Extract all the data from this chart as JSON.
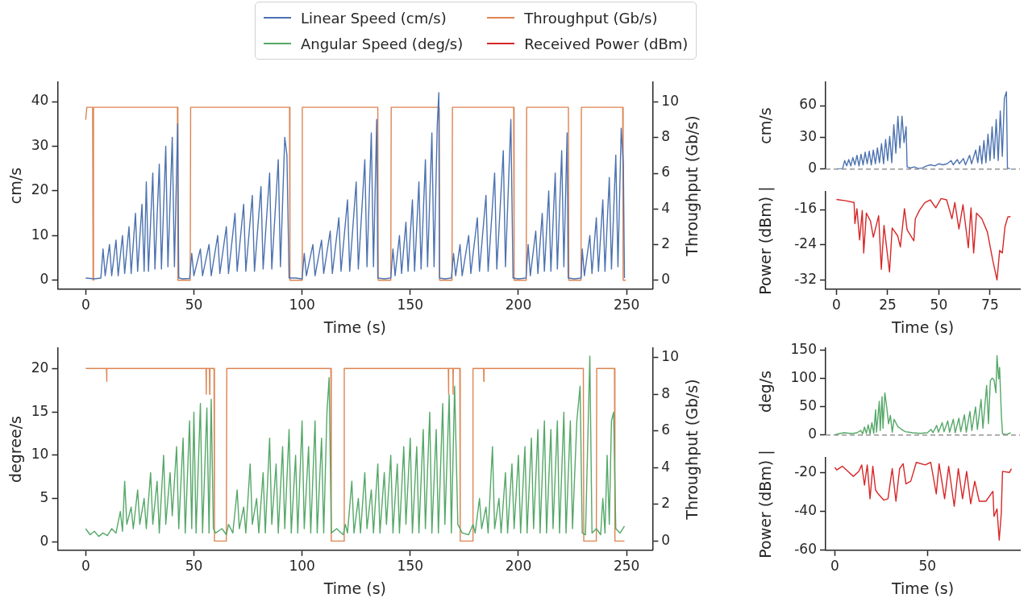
{
  "chart_data": [
    {
      "type": "line",
      "xlabel": "Time (s)",
      "ylabel": "cm/s",
      "y2label": "Throughput (Gb/s)",
      "legend": "top",
      "xlim": [
        -13,
        262
      ],
      "xticks": [
        0,
        50,
        100,
        150,
        200,
        250
      ],
      "ylim": [
        -2,
        44.3
      ],
      "yticks": [
        0,
        10,
        20,
        30,
        40
      ],
      "y2lim": [
        -0.5,
        11.1
      ],
      "y2ticks": [
        0,
        2,
        4,
        6,
        8,
        10
      ],
      "series": [
        {
          "name": "Linear Speed (cm/s)",
          "color": "#4c72b0",
          "x": [
            0,
            4,
            7,
            8,
            9,
            11,
            12,
            14,
            15,
            17,
            18,
            20,
            21,
            23,
            24,
            26,
            27,
            28,
            29,
            31,
            32,
            34,
            35,
            37,
            38,
            40,
            41,
            42.5,
            43,
            45,
            48,
            49,
            50,
            53,
            54,
            57,
            58,
            61,
            62,
            65,
            66,
            69,
            70,
            73,
            74,
            77,
            78,
            81,
            82,
            85,
            86,
            89,
            90,
            92,
            93,
            94,
            97,
            100,
            101,
            102,
            105,
            106,
            109,
            110,
            113,
            114,
            117,
            118,
            121,
            122,
            125,
            126,
            129,
            130,
            132,
            133,
            134.5,
            135,
            138,
            141,
            142,
            143,
            145,
            146,
            148,
            149,
            151,
            152,
            154,
            155,
            157,
            158,
            160,
            161,
            162.5,
            163.2,
            163.5,
            166,
            169,
            170,
            171,
            173,
            174,
            177,
            178,
            181,
            182,
            185,
            186,
            189,
            190,
            193,
            194,
            196.5,
            197.5,
            200,
            203.5,
            204.5,
            205.5,
            208,
            209,
            211,
            212,
            214,
            215,
            217,
            218,
            220,
            221,
            222.5,
            223,
            226,
            229,
            229.5,
            230.5,
            233,
            234,
            236,
            237,
            239,
            240,
            242,
            243,
            245,
            246,
            247.5,
            248.5,
            249
          ],
          "values": [
            0.5,
            0.3,
            0.5,
            7,
            1,
            8,
            1,
            9,
            1,
            10,
            1.5,
            12,
            1.5,
            15,
            2,
            17,
            2,
            22,
            2,
            24,
            2.5,
            26,
            2.5,
            30,
            3,
            32,
            3,
            35,
            0.5,
            0.3,
            0.4,
            6,
            1,
            7,
            1,
            8,
            1,
            10,
            1.5,
            12,
            1.5,
            15,
            2,
            17,
            2,
            19,
            2,
            21,
            2.5,
            24,
            2.5,
            27,
            3,
            32,
            28,
            0.5,
            0.5,
            0.3,
            6,
            1,
            8,
            1,
            9,
            1.5,
            11,
            1.5,
            14,
            2,
            18,
            2,
            22,
            2.5,
            27,
            3,
            33,
            3,
            36,
            0.5,
            0.3,
            0.5,
            7,
            1,
            10,
            1.5,
            13,
            2,
            18,
            2,
            22,
            2.5,
            27,
            3,
            33,
            3,
            35,
            42,
            0.5,
            0.3,
            0.5,
            6,
            1,
            8,
            1,
            10,
            1.5,
            14,
            2,
            19,
            2,
            24,
            2.5,
            29,
            3,
            36,
            0.5,
            0.3,
            0.5,
            8,
            1,
            11,
            1.5,
            15,
            2,
            20,
            2,
            24,
            2.5,
            29,
            3,
            33,
            0.5,
            0.3,
            0.5,
            7,
            1,
            10,
            1.5,
            14,
            2,
            18,
            2,
            23,
            2.5,
            28,
            3,
            34,
            26,
            0.5
          ]
        },
        {
          "name": "Throughput (Gb/s)",
          "color": "#dd8452",
          "axis": "y2",
          "x": [
            0,
            0.5,
            3.2,
            3.4,
            3.6,
            42.4,
            42.6,
            48.3,
            48.5,
            94.2,
            94.4,
            99.9,
            100.1,
            135,
            135.2,
            141,
            141.2,
            163.4,
            163.6,
            169.3,
            169.5,
            197.8,
            198,
            203.6,
            203.8,
            223.1,
            223.3,
            228.9,
            229.1,
            248.2,
            248.4,
            249.6
          ],
          "values": [
            9,
            9.7,
            9.7,
            0,
            9.7,
            9.7,
            0,
            0,
            9.7,
            9.7,
            0,
            0,
            9.7,
            9.7,
            0,
            0,
            9.7,
            9.7,
            0,
            0,
            9.7,
            9.7,
            0,
            0,
            9.7,
            9.7,
            0,
            0,
            9.7,
            9.7,
            0,
            0
          ]
        }
      ]
    },
    {
      "type": "line",
      "ylabel": "cm/s",
      "tick_labels": "y",
      "xlim": [
        -5.3,
        89.6
      ],
      "ylim": [
        0,
        82
      ],
      "yticks": [
        0,
        30,
        60
      ],
      "ref_lines": [
        {
          "axis": "y",
          "value": 0,
          "color": "#808080",
          "line_style": "dashed"
        }
      ],
      "series": [
        {
          "color": "#4c72b0",
          "x": [
            0,
            3,
            4,
            5,
            6,
            7,
            8,
            9,
            10,
            11,
            12,
            13,
            14,
            15,
            16,
            17,
            18,
            19,
            20,
            21,
            22,
            23,
            24,
            25,
            26,
            27,
            28,
            29,
            30,
            31,
            32,
            33,
            34,
            34.5,
            36,
            38,
            40,
            42,
            44,
            46,
            48,
            50,
            52,
            54,
            56,
            57,
            59,
            60,
            62,
            63,
            65,
            66,
            68,
            69,
            70,
            71,
            72,
            73,
            74,
            75,
            76,
            77,
            78,
            79,
            80,
            81,
            82,
            83,
            83.5,
            85
          ],
          "values": [
            0,
            0.5,
            8,
            3,
            9,
            3,
            11,
            4,
            13,
            3,
            14,
            4,
            16,
            5,
            17,
            4,
            18,
            5,
            20,
            6,
            24,
            5,
            28,
            8,
            31,
            6,
            42,
            15,
            50,
            20,
            50,
            25,
            40,
            2,
            1,
            2,
            0.5,
            1,
            3,
            4,
            3,
            5,
            4,
            5,
            8,
            4,
            9,
            5,
            10,
            4,
            13,
            5,
            18,
            6,
            22,
            5,
            27,
            6,
            33,
            8,
            40,
            10,
            47,
            8,
            55,
            12,
            67,
            73,
            1,
            0
          ]
        }
      ]
    },
    {
      "type": "line",
      "xlabel": "Time (s)",
      "ylabel": "Power (dBm) |",
      "xlim": [
        -5.3,
        89.6
      ],
      "xticks": [
        0,
        25,
        50,
        75
      ],
      "ylim": [
        -34.1,
        -12
      ],
      "yticks": [
        -32,
        -24,
        -16
      ],
      "series": [
        {
          "color": "#d62728",
          "x": [
            0,
            4.6,
            8.6,
            9,
            10,
            11.3,
            12.6,
            13.3,
            14.6,
            16.6,
            18,
            20.6,
            21.9,
            23.2,
            25.9,
            27.2,
            29.9,
            31.2,
            33.2,
            34.5,
            37.8,
            38.5,
            40.5,
            43.2,
            45.8,
            48.5,
            51.1,
            53.8,
            56.4,
            57.8,
            59.8,
            61.8,
            64.4,
            65.7,
            67,
            68.4,
            71,
            73.7,
            76.4,
            78.4,
            79.7,
            81,
            82.3,
            83.7,
            85
          ],
          "values": [
            -13.7,
            -14,
            -14.4,
            -19.2,
            -15.8,
            -22.9,
            -16.2,
            -25.9,
            -16.8,
            -18.6,
            -22.3,
            -17.4,
            -29.6,
            -19.6,
            -30.2,
            -20.2,
            -22,
            -24.5,
            -15.8,
            -20.6,
            -23.1,
            -18.1,
            -16.2,
            -14.4,
            -13.8,
            -15.6,
            -13.5,
            -13.8,
            -18.1,
            -14.4,
            -20.4,
            -14.9,
            -24.7,
            -15.6,
            -25.9,
            -16.8,
            -18.1,
            -21.1,
            -27.7,
            -32,
            -25.3,
            -25.9,
            -19.9,
            -17.7,
            -17.6
          ]
        }
      ]
    },
    {
      "type": "line",
      "xlabel": "Time (s)",
      "ylabel": "degree/s",
      "y2label": "Throughput (Gb/s)",
      "xlim": [
        -13,
        262
      ],
      "xticks": [
        0,
        50,
        100,
        150,
        200,
        250
      ],
      "ylim": [
        -1,
        22.4
      ],
      "yticks": [
        0,
        5,
        10,
        15,
        20
      ],
      "y2lim": [
        -0.5,
        10.5
      ],
      "y2ticks": [
        0,
        2,
        4,
        6,
        8,
        10
      ],
      "series": [
        {
          "name": "Angular Speed (deg/s)",
          "color": "#55a868",
          "x": [
            0,
            2,
            4,
            6,
            8,
            10,
            12,
            14,
            16,
            17,
            18,
            19,
            21,
            22,
            24,
            25,
            27,
            28,
            30,
            31,
            33,
            34,
            36,
            37,
            39,
            40,
            42,
            43,
            45,
            46,
            48,
            49,
            50,
            51,
            53,
            54,
            56,
            57,
            58,
            59,
            60,
            63,
            65,
            66,
            68,
            70,
            71,
            73,
            74,
            76,
            77,
            79,
            80,
            82,
            83,
            85,
            86,
            88,
            89,
            91,
            92,
            94,
            95,
            97,
            98,
            100,
            101,
            103,
            104,
            106,
            107,
            109,
            110,
            111.5,
            112.5,
            113.5,
            116,
            119,
            120,
            121,
            123,
            124,
            126,
            127,
            129,
            130,
            132,
            133,
            135,
            136,
            138,
            139,
            141,
            142,
            144,
            145,
            147,
            148,
            150,
            151,
            153,
            154,
            156,
            157,
            159,
            160,
            162,
            163,
            165,
            166,
            168,
            169,
            170.5,
            172,
            174,
            177,
            179,
            180,
            182,
            183,
            185,
            186,
            188,
            189,
            191,
            192,
            194,
            195,
            197,
            198,
            200,
            201,
            203,
            204,
            206,
            207,
            209,
            210,
            212,
            213,
            215,
            216,
            218,
            219,
            221,
            222,
            224,
            225,
            227,
            228.5,
            229.5,
            231,
            233,
            234,
            236,
            238,
            239,
            240,
            241,
            242,
            243,
            244,
            245,
            247,
            249
          ],
          "values": [
            1.5,
            0.8,
            1.2,
            0.6,
            1.0,
            0.7,
            1.5,
            1.0,
            3.5,
            1.2,
            7,
            2,
            4,
            1.5,
            6,
            2,
            5,
            1.5,
            8,
            2,
            7,
            1,
            10,
            2,
            8,
            3,
            11,
            1.5,
            12,
            1,
            14,
            1.5,
            15,
            1,
            16,
            1,
            15.5,
            1,
            16.5,
            1.5,
            1,
            1.5,
            0.8,
            2,
            1,
            6,
            1.5,
            4,
            1,
            9,
            2,
            5,
            1,
            8,
            1,
            12,
            2,
            9,
            1,
            11,
            1.5,
            13,
            1,
            10,
            1,
            14,
            1.5,
            11,
            1,
            14,
            1,
            12,
            1,
            15,
            19,
            1,
            1.5,
            0.8,
            2,
            1,
            7,
            1,
            5,
            1,
            8,
            1.5,
            6,
            1,
            9,
            1,
            8,
            2,
            10,
            1,
            9,
            1,
            11,
            2,
            12,
            1,
            11,
            1,
            13,
            1.5,
            15,
            1,
            13,
            1,
            16,
            2,
            17,
            1,
            18,
            2,
            1,
            0.8,
            2,
            1,
            5,
            1.5,
            4,
            1,
            11,
            1.5,
            5,
            1,
            8,
            1,
            9,
            1.5,
            10,
            1,
            11,
            1,
            12,
            1.5,
            13,
            1,
            14,
            1,
            13,
            1.5,
            14,
            1,
            15,
            1,
            14,
            1.5,
            14,
            18,
            1,
            0.8,
            21.5,
            1,
            1.5,
            0.8,
            5,
            1,
            10,
            2,
            14,
            15,
            1.5,
            1,
            1.8
          ]
        },
        {
          "color": "#dd8452",
          "axis": "y2",
          "x": [
            0,
            9.6,
            9.7,
            9.8,
            55.6,
            55.7,
            55.8,
            57.2,
            57.3,
            57.4,
            59.3,
            59.5,
            65,
            65.2,
            113.3,
            113.5,
            119.3,
            119.5,
            167.6,
            167.7,
            167.8,
            169.7,
            169.8,
            169.9,
            172.9,
            173.1,
            178.8,
            179,
            183.9,
            184,
            184.1,
            230,
            230.2,
            236,
            236.2,
            244.4,
            244.6,
            249
          ],
          "values": [
            9.4,
            9.4,
            8.7,
            9.4,
            9.4,
            8,
            9.4,
            9.4,
            8,
            9.4,
            9.4,
            0,
            0,
            9.4,
            9.4,
            0,
            0,
            9.4,
            9.4,
            8,
            9.4,
            9.4,
            8,
            9.4,
            9.4,
            0,
            0,
            9.4,
            9.4,
            8.7,
            9.4,
            9.4,
            0,
            0,
            9.4,
            9.4,
            0,
            0
          ]
        }
      ]
    },
    {
      "type": "line",
      "ylabel": "deg/s",
      "tick_labels": "y",
      "xlim": [
        -5,
        100
      ],
      "ylim": [
        0,
        154
      ],
      "yticks": [
        0,
        50,
        100,
        150
      ],
      "ref_lines": [
        {
          "axis": "y",
          "value": 0,
          "color": "#808080",
          "line_style": "dashed"
        }
      ],
      "series": [
        {
          "color": "#55a868",
          "x": [
            0,
            3,
            5,
            8,
            10,
            12,
            14,
            15,
            16,
            17,
            18,
            19,
            20,
            21,
            22,
            22.5,
            24,
            24.5,
            25.5,
            26,
            27,
            28,
            29,
            30,
            31,
            32,
            34,
            36,
            38,
            42,
            46,
            50,
            52,
            53,
            55,
            56,
            58,
            59,
            61,
            62,
            64,
            65,
            67,
            68,
            70,
            71,
            73,
            74,
            76,
            77,
            79,
            80,
            82,
            83,
            84,
            85,
            86,
            87,
            87.6,
            88.5,
            89,
            90,
            90.6,
            93,
            95
          ],
          "values": [
            0.5,
            3,
            4,
            3,
            3,
            4,
            8,
            2,
            14,
            3,
            18,
            2,
            22,
            3,
            45,
            5,
            60,
            8,
            68,
            12,
            75,
            50,
            20,
            35,
            5,
            28,
            15,
            10,
            6,
            4,
            3,
            4,
            10,
            4,
            17,
            5,
            22,
            6,
            25,
            5,
            28,
            4,
            30,
            6,
            36,
            5,
            42,
            8,
            50,
            10,
            63,
            12,
            88,
            20,
            96,
            101,
            98,
            75,
            141,
            100,
            120,
            33,
            2,
            1,
            4
          ]
        }
      ]
    },
    {
      "type": "line",
      "xlabel": "Time (s)",
      "ylabel": "Power (dBm) |",
      "xlim": [
        -5,
        100
      ],
      "xticks": [
        0,
        50
      ],
      "ylim": [
        -60,
        -12.5
      ],
      "yticks": [
        -60,
        -40,
        -20
      ],
      "series": [
        {
          "name": "Received Power (dBm)",
          "color": "#d62728",
          "x": [
            0,
            1,
            4,
            7,
            10,
            13,
            14.5,
            16,
            17.5,
            19,
            20.5,
            22,
            23.4,
            26.4,
            28.7,
            31,
            33,
            35,
            36.9,
            38.4,
            41,
            44,
            48.8,
            51.8,
            54.8,
            56.3,
            59.3,
            61.5,
            64.5,
            66.7,
            69,
            71.2,
            73.4,
            75.6,
            78,
            81.6,
            85.4,
            86,
            87.6,
            88.8,
            89.9,
            90.6,
            94.3,
            95.4
          ],
          "values": [
            -17.4,
            -18.7,
            -16.8,
            -19.4,
            -22,
            -19.4,
            -16.1,
            -26.5,
            -16.1,
            -33.5,
            -16.8,
            -29,
            -31,
            -34.2,
            -33.5,
            -18,
            -34.8,
            -18,
            -15.5,
            -25.8,
            -24.5,
            -14.8,
            -16.1,
            -14.8,
            -31,
            -15.5,
            -33.5,
            -16.8,
            -37.4,
            -18,
            -33.5,
            -19.4,
            -36.1,
            -24.5,
            -34.8,
            -34.8,
            -29.7,
            -42.6,
            -38.7,
            -54.8,
            -41.3,
            -19.4,
            -20,
            -18.1
          ]
        }
      ]
    }
  ]
}
